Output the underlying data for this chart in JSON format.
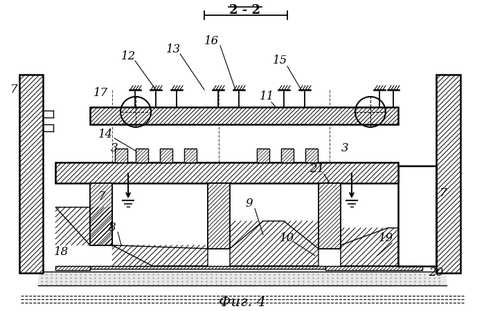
{
  "bg_color": "#ffffff",
  "line_color": "#000000",
  "fig_caption": "Фиг. 4",
  "section_label": "2 - 2",
  "label_fontsize": 12,
  "caption_fontsize": 15
}
